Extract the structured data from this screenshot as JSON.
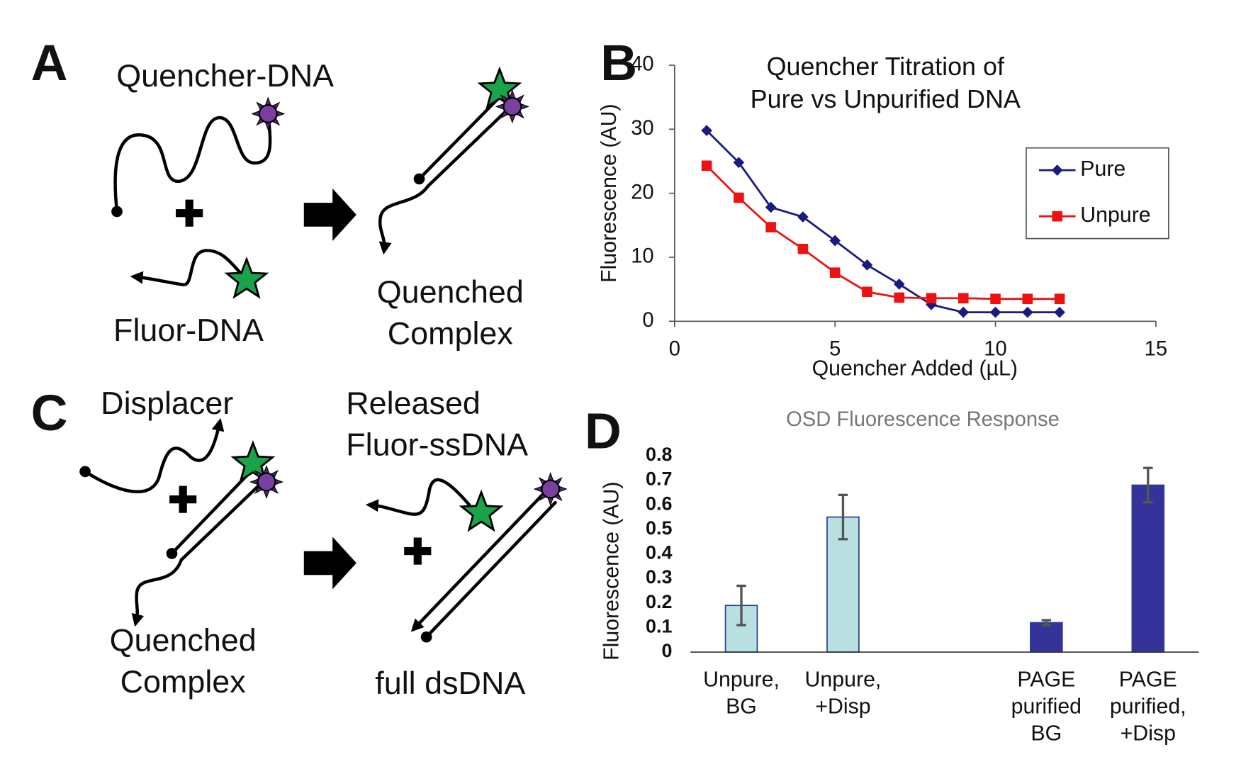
{
  "panels": [
    "A",
    "B",
    "C",
    "D"
  ],
  "diagram_a": {
    "quencher_dna": "Quencher-DNA",
    "fluor_dna": "Fluor-DNA",
    "product": [
      "Quenched",
      "Complex"
    ]
  },
  "diagram_c": {
    "displacer": "Displacer",
    "complex": [
      "Quenched",
      "Complex"
    ],
    "released": [
      "Released",
      "Fluor-ssDNA"
    ],
    "product": "full dsDNA"
  },
  "chart_data": [
    {
      "type": "line",
      "title": [
        "Quencher Titration of",
        "Pure vs Unpurified DNA"
      ],
      "x_label": "Quencher Added (µL)",
      "y_label": "Fluorescence (AU)",
      "x": [
        1,
        2,
        3,
        4,
        5,
        6,
        7,
        8,
        9,
        10,
        11,
        12
      ],
      "series": [
        {
          "name": "Pure",
          "color": "#1a1a80",
          "marker": "diamond",
          "values": [
            29.8,
            24.8,
            17.8,
            16.3,
            12.6,
            8.8,
            5.8,
            2.6,
            1.4,
            1.4,
            1.4,
            1.4
          ]
        },
        {
          "name": "Unpure",
          "color": "#ee1111",
          "marker": "square",
          "values": [
            24.3,
            19.3,
            14.7,
            11.3,
            7.6,
            4.6,
            3.7,
            3.6,
            3.6,
            3.5,
            3.5,
            3.5
          ]
        }
      ],
      "xlim": [
        0,
        15
      ],
      "xticks": [
        0,
        5,
        10,
        15
      ],
      "ylim": [
        0,
        40
      ],
      "yticks": [
        0,
        10,
        20,
        30,
        40
      ],
      "legend": "upper right",
      "grid": false
    },
    {
      "type": "bar",
      "title": "OSD Fluorescence Response",
      "y_label": "Fluorescence (AU)",
      "categories": [
        [
          "Unpure,",
          "BG"
        ],
        [
          "Unpure,",
          "+Disp"
        ],
        null,
        [
          "PAGE",
          "purified",
          "BG"
        ],
        [
          "PAGE",
          "purified,",
          "+Disp"
        ]
      ],
      "values": [
        0.19,
        0.55,
        null,
        0.12,
        0.68
      ],
      "errors": [
        0.08,
        0.09,
        null,
        0.01,
        0.07
      ],
      "colors": [
        "#b8e0e0",
        "#b8e0e0",
        null,
        "#333399",
        "#333399"
      ],
      "ylim": [
        0,
        0.8
      ],
      "yticks": [
        0,
        0.1,
        0.2,
        0.3,
        0.4,
        0.5,
        0.6,
        0.7,
        0.8
      ],
      "grid": false
    }
  ]
}
